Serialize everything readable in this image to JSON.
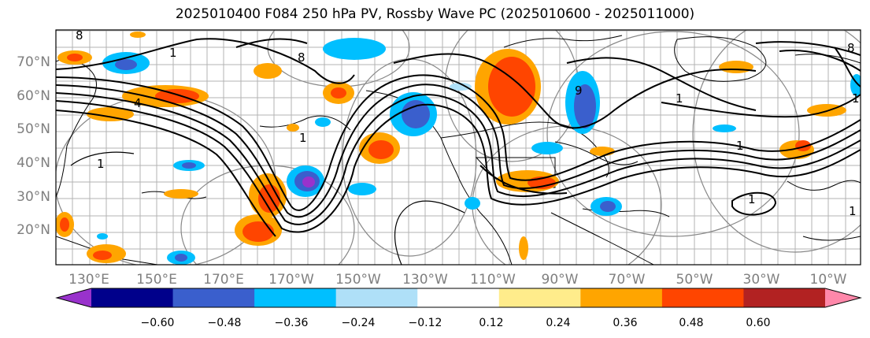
{
  "title": "2025010400 F084 250 hPa PV, Rossby Wave PC (2025010600 - 2025011000)",
  "lat_labels": [
    "70°N",
    "60°N",
    "50°N",
    "40°N",
    "30°N",
    "20°N"
  ],
  "lon_labels": [
    "130°E",
    "150°E",
    "170°E",
    "170°W",
    "150°W",
    "130°W",
    "110°W",
    "90°W",
    "70°W",
    "50°W",
    "30°W",
    "10°W"
  ],
  "contour_labels": [
    "1",
    "1",
    "1",
    "1",
    "1",
    "1",
    "1",
    "8",
    "8",
    "8",
    "9",
    "1",
    "4"
  ],
  "colorbar": {
    "colors": [
      "#9932cc",
      "#00008b",
      "#3a5fcd",
      "#00bfff",
      "#afe0f8",
      "#ffffff",
      "#ffec8b",
      "#ffa500",
      "#ff4500",
      "#b22222",
      "#ff88aa"
    ],
    "tick_labels": [
      "−0.60",
      "−0.48",
      "−0.36",
      "−0.24",
      "−0.12",
      "0.12",
      "0.24",
      "0.36",
      "0.48",
      "0.60"
    ]
  }
}
